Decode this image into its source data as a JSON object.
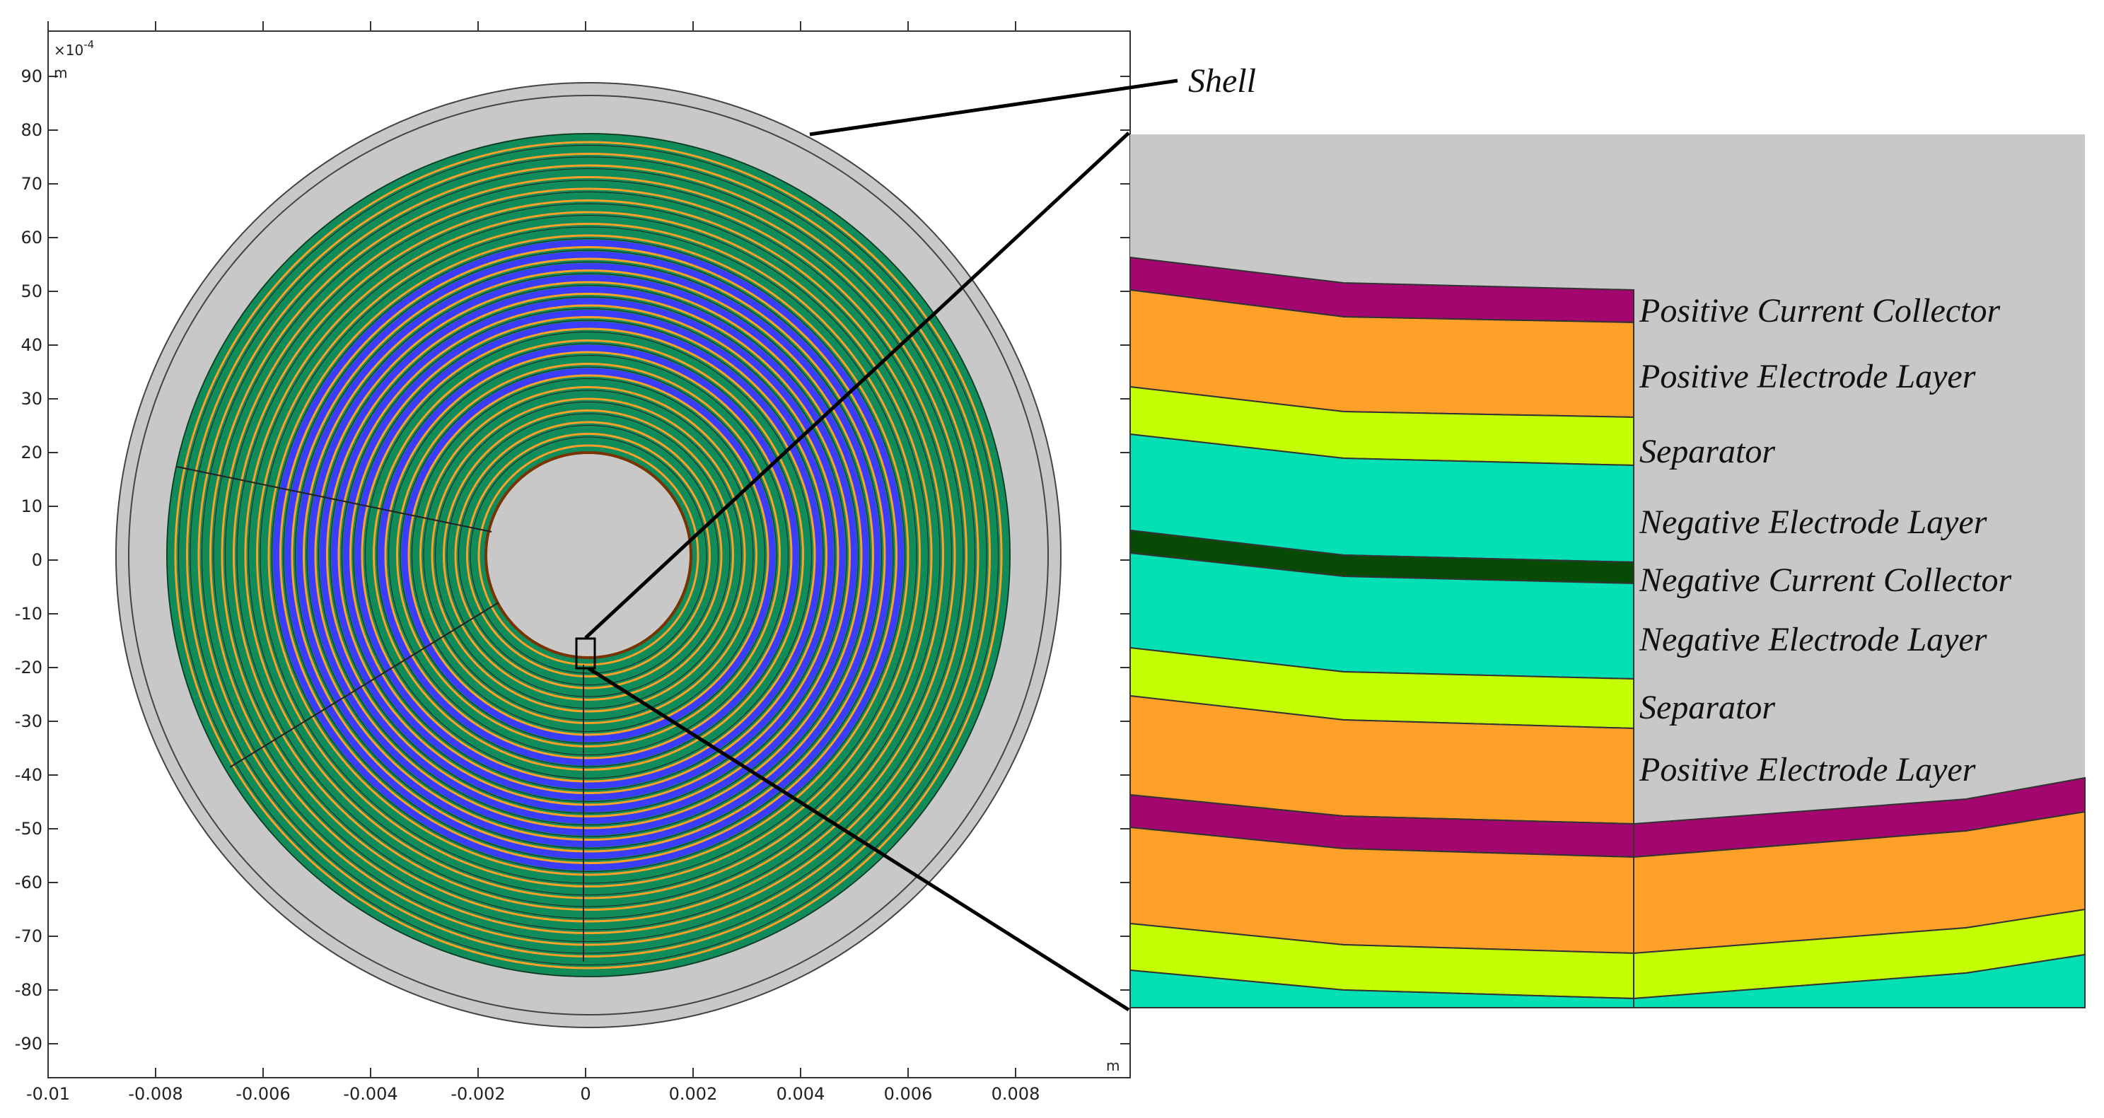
{
  "plot": {
    "scale_label": "×10",
    "scale_exp": "-4",
    "y_unit": "m",
    "x_unit": "m",
    "x_ticks": [
      "-0.01",
      "-0.008",
      "-0.006",
      "-0.004",
      "-0.002",
      "0",
      "0.002",
      "0.004",
      "0.006",
      "0.008"
    ],
    "y_ticks": [
      "90",
      "80",
      "70",
      "60",
      "50",
      "40",
      "30",
      "20",
      "10",
      "0",
      "-10",
      "-20",
      "-30",
      "-40",
      "-50",
      "-60",
      "-70",
      "-80",
      "-90"
    ]
  },
  "callouts": {
    "shell": "Shell"
  },
  "layers": [
    "Positive Current Collector",
    "Positive Electrode Layer",
    "Separator",
    "Negative Electrode Layer",
    "Negative Current Collector",
    "Negative Electrode Layer",
    "Separator",
    "Positive Electrode Layer"
  ],
  "colors": {
    "shell": "#c8c8c8",
    "positive_current_collector": "#a3066e",
    "positive_electrode": "#ffa028",
    "separator": "#c3ff00",
    "negative_electrode": "#00e0b4",
    "negative_current_collector": "#064a06",
    "spiral_green": "#0f8c5a",
    "spiral_blue": "#3c3cff"
  }
}
